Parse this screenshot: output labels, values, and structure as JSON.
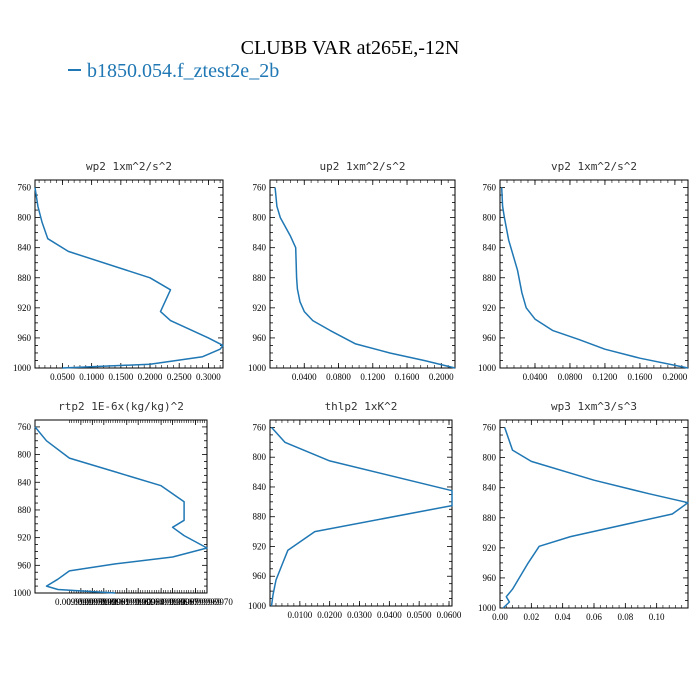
{
  "title": "CLUBB VAR at265E,-12N",
  "legend": [
    "b1850.054.f_ztest2e_2b"
  ],
  "line_color": "#1f77b4",
  "chart_data": [
    {
      "type": "line",
      "title": "wp2   1xm^2/s^2",
      "ylim": [
        1000,
        750
      ],
      "yticks": [
        760,
        800,
        840,
        880,
        920,
        960,
        1000
      ],
      "xlim": [
        0.003,
        0.325
      ],
      "xticks": [
        0.05,
        0.1,
        0.15,
        0.2,
        0.25,
        0.3
      ],
      "xticklabels": [
        "0.0500",
        "0.1000",
        "0.1500",
        "0.2000",
        "0.2500",
        "0.3000"
      ],
      "series": [
        {
          "name": "b1850.054.f_ztest2e_2b",
          "x": [
            0.003,
            0.008,
            0.015,
            0.025,
            0.06,
            0.2,
            0.235,
            0.218,
            0.235,
            0.3,
            0.325,
            0.32,
            0.29,
            0.2,
            0.05
          ],
          "y": [
            760,
            785,
            806,
            828,
            845,
            880,
            896,
            925,
            937,
            960,
            970,
            975,
            985,
            995,
            1000
          ]
        }
      ]
    },
    {
      "type": "line",
      "title": "up2   1xm^2/s^2",
      "ylim": [
        1000,
        750
      ],
      "yticks": [
        760,
        800,
        840,
        880,
        920,
        960,
        1000
      ],
      "xlim": [
        0.0,
        0.216
      ],
      "xticks": [
        0.04,
        0.08,
        0.12,
        0.16,
        0.2
      ],
      "xticklabels": [
        "0.0400",
        "0.0800",
        "0.1200",
        "0.1600",
        "0.2000"
      ],
      "series": [
        {
          "name": "b1850.054.f_ztest2e_2b",
          "x": [
            0.006,
            0.008,
            0.012,
            0.024,
            0.03,
            0.031,
            0.032,
            0.035,
            0.04,
            0.05,
            0.07,
            0.1,
            0.14,
            0.18,
            0.216
          ],
          "y": [
            760,
            785,
            800,
            825,
            840,
            880,
            895,
            912,
            925,
            937,
            950,
            968,
            980,
            990,
            1000
          ]
        }
      ]
    },
    {
      "type": "line",
      "title": "vp2   1xm^2/s^2",
      "ylim": [
        1000,
        750
      ],
      "yticks": [
        760,
        800,
        840,
        880,
        920,
        960,
        1000
      ],
      "xlim": [
        0.0,
        0.215
      ],
      "xticks": [
        0.04,
        0.08,
        0.12,
        0.16,
        0.2
      ],
      "xticklabels": [
        "0.0400",
        "0.0800",
        "0.1200",
        "0.1600",
        "0.2000"
      ],
      "series": [
        {
          "name": "b1850.054.f_ztest2e_2b",
          "x": [
            0.002,
            0.003,
            0.005,
            0.01,
            0.02,
            0.025,
            0.03,
            0.04,
            0.06,
            0.09,
            0.12,
            0.16,
            0.215
          ],
          "y": [
            760,
            785,
            800,
            830,
            870,
            900,
            920,
            935,
            950,
            962,
            975,
            987,
            1000
          ]
        }
      ]
    },
    {
      "type": "line",
      "title": "rtp2   1E-6x(kg/kg)^2",
      "ylim": [
        1000,
        750
      ],
      "yticks": [
        760,
        800,
        840,
        880,
        920,
        960,
        1000
      ],
      "xlim": [
        0.0099999955,
        0.009999997
      ],
      "xticks": [
        0.0099999959,
        0.009999996,
        0.0099999961,
        0.0099999963,
        0.0099999964,
        0.0099999966,
        0.0099999967,
        0.0099999969,
        0.009999997
      ],
      "xticklabels": [
        "0.0099999959",
        "0.0099999960",
        "0.0099999961",
        "0.0099999963",
        "0.0099999964",
        "0.0099999966",
        "0.0099999967",
        "0.0099999969",
        "0.0099999970"
      ],
      "series": [
        {
          "name": "b1850.054.f_ztest2e_2b",
          "x": [
            0.0099999955,
            0.0099999956,
            0.0099999958,
            0.0099999962,
            0.0099999966,
            0.0099999968,
            0.0099999968,
            0.0099999967,
            0.0099999968,
            0.009999997,
            0.0099999967,
            0.0099999962,
            0.0099999958,
            0.0099999957,
            0.0099999956,
            0.0099999957,
            0.009999996,
            0.0099999962
          ],
          "y": [
            760,
            780,
            805,
            825,
            845,
            868,
            895,
            905,
            917,
            935,
            948,
            958,
            968,
            980,
            990,
            995,
            998,
            1000
          ]
        }
      ]
    },
    {
      "type": "line",
      "title": "thlp2   1xK^2",
      "ylim": [
        1000,
        750
      ],
      "yticks": [
        760,
        800,
        840,
        880,
        920,
        960,
        1000
      ],
      "xlim": [
        0.0,
        0.061
      ],
      "xticks": [
        0.01,
        0.02,
        0.03,
        0.04,
        0.05,
        0.06
      ],
      "xticklabels": [
        "0.0100",
        "0.0200",
        "0.0300",
        "0.0400",
        "0.0500",
        "0.0600"
      ],
      "series": [
        {
          "name": "b1850.054.f_ztest2e_2b",
          "x": [
            0.0005,
            0.005,
            0.02,
            0.061,
            0.061,
            0.015,
            0.006,
            0.004,
            0.002,
            0.001,
            0.0005
          ],
          "y": [
            760,
            780,
            805,
            845,
            865,
            900,
            925,
            945,
            965,
            985,
            1000
          ]
        }
      ]
    },
    {
      "type": "line",
      "title": "wp3   1xm^3/s^3",
      "ylim": [
        1000,
        750
      ],
      "yticks": [
        760,
        800,
        840,
        880,
        920,
        960,
        1000
      ],
      "xlim": [
        0.0,
        0.12
      ],
      "xticks": [
        0.0,
        0.02,
        0.04,
        0.06,
        0.08,
        0.1
      ],
      "xticklabels": [
        "0.00",
        "0.02",
        "0.04",
        "0.06",
        "0.08",
        "0.10"
      ],
      "series": [
        {
          "name": "b1850.054.f_ztest2e_2b",
          "x": [
            0.003,
            0.008,
            0.02,
            0.06,
            0.095,
            0.12,
            0.11,
            0.045,
            0.025,
            0.018,
            0.008,
            0.004,
            0.006,
            0.002
          ],
          "y": [
            760,
            790,
            805,
            830,
            848,
            860,
            875,
            905,
            918,
            940,
            975,
            985,
            992,
            1000
          ]
        }
      ]
    }
  ]
}
